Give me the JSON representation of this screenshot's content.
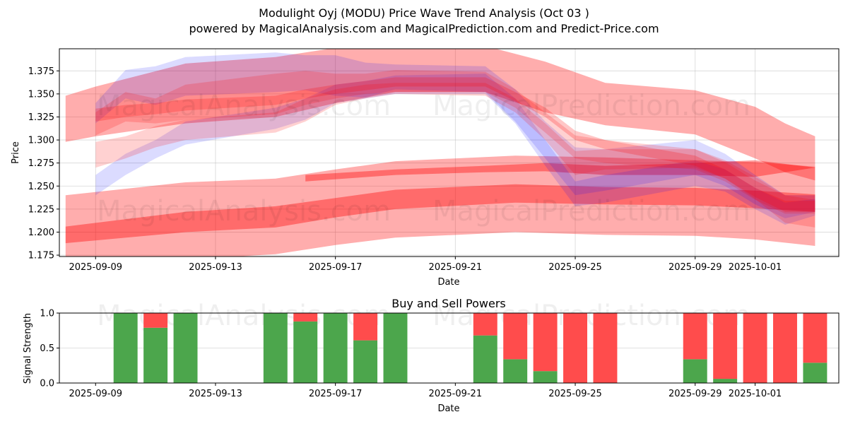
{
  "header": {
    "title": "Modulight Oyj (MODU) Price Wave Trend Analysis (Oct 03 )",
    "subtitle": "powered by MagicalAnalysis.com and MagicalPrediction.com and Predict-Price.com"
  },
  "watermarks": [
    "MagicalAnalysis.com",
    "MagicalPrediction.com"
  ],
  "chart_data": [
    {
      "type": "area",
      "title": "",
      "xlabel": "Date",
      "ylabel": "Price",
      "ylim": [
        1.1735,
        1.399
      ],
      "xlim": [
        "2025-09-07T19:00",
        "2025-10-03T19:00"
      ],
      "grid": true,
      "x_ticks": [
        "2025-09-09",
        "2025-09-13",
        "2025-09-17",
        "2025-09-21",
        "2025-09-25",
        "2025-09-29",
        "2025-10-01"
      ],
      "y_ticks": [
        "1.175",
        "1.200",
        "1.225",
        "1.250",
        "1.275",
        "1.300",
        "1.325",
        "1.350",
        "1.375"
      ],
      "colors": {
        "red": "#ff0000",
        "blue": "#0000ff"
      },
      "bands": [
        {
          "name": "long-wave-outer",
          "color": "red",
          "opacity": 0.32,
          "x": [
            "2025-09-08",
            "2025-09-12",
            "2025-09-15",
            "2025-09-17",
            "2025-09-19",
            "2025-09-23",
            "2025-09-26",
            "2025-09-29",
            "2025-10-01",
            "2025-10-03"
          ],
          "low": [
            1.165,
            1.17,
            1.176,
            1.186,
            1.194,
            1.2,
            1.197,
            1.196,
            1.192,
            1.185
          ],
          "high": [
            1.24,
            1.254,
            1.258,
            1.268,
            1.277,
            1.283,
            1.281,
            1.278,
            1.276,
            1.271
          ]
        },
        {
          "name": "long-wave-core",
          "color": "red",
          "opacity": 0.38,
          "x": [
            "2025-09-08",
            "2025-09-12",
            "2025-09-15",
            "2025-09-17",
            "2025-09-19",
            "2025-09-23",
            "2025-09-26",
            "2025-09-29",
            "2025-10-01",
            "2025-10-03"
          ],
          "low": [
            1.188,
            1.2,
            1.205,
            1.216,
            1.225,
            1.232,
            1.23,
            1.229,
            1.226,
            1.222
          ],
          "high": [
            1.206,
            1.222,
            1.228,
            1.237,
            1.246,
            1.252,
            1.249,
            1.248,
            1.245,
            1.241
          ]
        },
        {
          "name": "mid-wave-upper",
          "color": "red",
          "opacity": 0.32,
          "x": [
            "2025-09-08",
            "2025-09-09",
            "2025-09-12",
            "2025-09-15",
            "2025-09-17",
            "2025-09-19",
            "2025-09-22",
            "2025-09-24",
            "2025-09-26",
            "2025-09-29",
            "2025-10-01",
            "2025-10-02",
            "2025-10-03"
          ],
          "low": [
            1.298,
            1.304,
            1.318,
            1.325,
            1.34,
            1.352,
            1.352,
            1.33,
            1.316,
            1.306,
            1.28,
            1.265,
            1.256
          ],
          "high": [
            1.348,
            1.358,
            1.383,
            1.39,
            1.4,
            1.402,
            1.402,
            1.385,
            1.362,
            1.354,
            1.336,
            1.318,
            1.304
          ]
        },
        {
          "name": "mid-wave-lower",
          "color": "red",
          "opacity": 0.38,
          "x": [
            "2025-09-16",
            "2025-09-19",
            "2025-09-22",
            "2025-09-24",
            "2025-09-26",
            "2025-09-29",
            "2025-10-01",
            "2025-10-03"
          ],
          "low": [
            1.255,
            1.262,
            1.265,
            1.266,
            1.262,
            1.262,
            1.26,
            1.27
          ],
          "high": [
            1.262,
            1.268,
            1.272,
            1.275,
            1.272,
            1.275,
            1.278,
            1.27
          ]
        },
        {
          "name": "short-wave-1",
          "color": "blue",
          "opacity": 0.14,
          "x": [
            "2025-09-09",
            "2025-09-10",
            "2025-09-11",
            "2025-09-12",
            "2025-09-15",
            "2025-09-16",
            "2025-09-17",
            "2025-09-18",
            "2025-09-19",
            "2025-09-22",
            "2025-09-23",
            "2025-09-24",
            "2025-09-25",
            "2025-09-26",
            "2025-09-29",
            "2025-09-30",
            "2025-10-01",
            "2025-10-02",
            "2025-10-03"
          ],
          "low": [
            1.318,
            1.345,
            1.338,
            1.348,
            1.352,
            1.354,
            1.348,
            1.346,
            1.355,
            1.352,
            1.32,
            1.28,
            1.24,
            1.245,
            1.262,
            1.25,
            1.23,
            1.215,
            1.222
          ],
          "high": [
            1.34,
            1.376,
            1.38,
            1.39,
            1.395,
            1.392,
            1.392,
            1.384,
            1.382,
            1.38,
            1.355,
            1.32,
            1.292,
            1.29,
            1.3,
            1.285,
            1.262,
            1.24,
            1.24
          ]
        },
        {
          "name": "short-wave-2",
          "color": "blue",
          "opacity": 0.14,
          "x": [
            "2025-09-09",
            "2025-09-10",
            "2025-09-11",
            "2025-09-12",
            "2025-09-15",
            "2025-09-16",
            "2025-09-17",
            "2025-09-18",
            "2025-09-19",
            "2025-09-22",
            "2025-09-23",
            "2025-09-24",
            "2025-09-25",
            "2025-09-26",
            "2025-09-29",
            "2025-09-30",
            "2025-10-01",
            "2025-10-02",
            "2025-10-03"
          ],
          "low": [
            1.24,
            1.262,
            1.28,
            1.295,
            1.312,
            1.322,
            1.34,
            1.345,
            1.35,
            1.35,
            1.318,
            1.272,
            1.228,
            1.232,
            1.25,
            1.244,
            1.225,
            1.208,
            1.218
          ],
          "high": [
            1.262,
            1.285,
            1.3,
            1.32,
            1.335,
            1.345,
            1.36,
            1.364,
            1.37,
            1.372,
            1.345,
            1.3,
            1.255,
            1.262,
            1.278,
            1.268,
            1.248,
            1.232,
            1.236
          ]
        },
        {
          "name": "short-wave-3",
          "color": "red",
          "opacity": 0.18,
          "x": [
            "2025-09-09",
            "2025-09-10",
            "2025-09-11",
            "2025-09-12",
            "2025-09-15",
            "2025-09-16",
            "2025-09-17",
            "2025-09-18",
            "2025-09-19",
            "2025-09-22",
            "2025-09-23",
            "2025-09-24",
            "2025-09-25",
            "2025-09-26",
            "2025-09-29",
            "2025-09-30",
            "2025-10-01",
            "2025-10-02",
            "2025-10-03"
          ],
          "low": [
            1.305,
            1.32,
            1.318,
            1.322,
            1.328,
            1.338,
            1.345,
            1.35,
            1.352,
            1.352,
            1.335,
            1.308,
            1.28,
            1.275,
            1.268,
            1.255,
            1.235,
            1.22,
            1.22
          ],
          "high": [
            1.33,
            1.352,
            1.345,
            1.36,
            1.372,
            1.375,
            1.372,
            1.372,
            1.376,
            1.374,
            1.355,
            1.33,
            1.305,
            1.3,
            1.29,
            1.276,
            1.256,
            1.24,
            1.24
          ]
        },
        {
          "name": "short-wave-4",
          "color": "red",
          "opacity": 0.18,
          "x": [
            "2025-09-09",
            "2025-09-10",
            "2025-09-11",
            "2025-09-12",
            "2025-09-15",
            "2025-09-16",
            "2025-09-17",
            "2025-09-18",
            "2025-09-19",
            "2025-09-22",
            "2025-09-23",
            "2025-09-24",
            "2025-09-25",
            "2025-09-26",
            "2025-09-29",
            "2025-09-30",
            "2025-10-01",
            "2025-10-02",
            "2025-10-03"
          ],
          "low": [
            1.27,
            1.28,
            1.292,
            1.3,
            1.308,
            1.32,
            1.338,
            1.345,
            1.35,
            1.348,
            1.33,
            1.3,
            1.262,
            1.268,
            1.27,
            1.258,
            1.236,
            1.21,
            1.205
          ],
          "high": [
            1.298,
            1.304,
            1.315,
            1.322,
            1.33,
            1.345,
            1.355,
            1.36,
            1.362,
            1.362,
            1.345,
            1.318,
            1.288,
            1.29,
            1.29,
            1.278,
            1.26,
            1.24,
            1.235
          ]
        },
        {
          "name": "short-wave-5",
          "color": "red",
          "opacity": 0.22,
          "x": [
            "2025-09-09",
            "2025-09-10",
            "2025-09-11",
            "2025-09-12",
            "2025-09-15",
            "2025-09-16",
            "2025-09-17",
            "2025-09-18",
            "2025-09-19",
            "2025-09-22",
            "2025-09-23",
            "2025-09-24",
            "2025-09-25",
            "2025-09-26",
            "2025-09-29",
            "2025-09-30",
            "2025-10-01",
            "2025-10-02",
            "2025-10-03"
          ],
          "low": [
            1.32,
            1.325,
            1.328,
            1.332,
            1.338,
            1.345,
            1.35,
            1.354,
            1.358,
            1.358,
            1.342,
            1.325,
            1.3,
            1.29,
            1.272,
            1.258,
            1.238,
            1.222,
            1.222
          ],
          "high": [
            1.334,
            1.338,
            1.34,
            1.344,
            1.348,
            1.355,
            1.36,
            1.364,
            1.368,
            1.368,
            1.352,
            1.335,
            1.31,
            1.3,
            1.283,
            1.268,
            1.248,
            1.234,
            1.234
          ]
        }
      ]
    },
    {
      "type": "bar",
      "title": "Buy and Sell Powers",
      "xlabel": "Date",
      "ylabel": "Signal Strength",
      "ylim": [
        0,
        1
      ],
      "xlim": [
        "2025-09-07T19:00",
        "2025-10-03T19:00"
      ],
      "grid": true,
      "x_ticks": [
        "2025-09-09",
        "2025-09-13",
        "2025-09-17",
        "2025-09-21",
        "2025-09-25",
        "2025-09-29",
        "2025-10-01"
      ],
      "y_ticks": [
        "0.0",
        "0.5",
        "1.0"
      ],
      "colors": {
        "buy": "#4ca64c",
        "sell": "#ff4c4c"
      },
      "categories": [
        "2025-09-10",
        "2025-09-11",
        "2025-09-12",
        "2025-09-15",
        "2025-09-16",
        "2025-09-17",
        "2025-09-18",
        "2025-09-19",
        "2025-09-22",
        "2025-09-23",
        "2025-09-24",
        "2025-09-25",
        "2025-09-26",
        "2025-09-29",
        "2025-09-30",
        "2025-10-01",
        "2025-10-02",
        "2025-10-03"
      ],
      "series": [
        {
          "name": "Buy",
          "values": [
            1.0,
            0.79,
            1.0,
            1.0,
            0.88,
            1.0,
            0.61,
            1.0,
            0.68,
            0.34,
            0.17,
            0.0,
            0.0,
            0.34,
            0.06,
            0.0,
            0.0,
            0.29
          ]
        },
        {
          "name": "Sell",
          "values": [
            0.0,
            0.21,
            0.0,
            0.0,
            0.12,
            0.0,
            0.39,
            0.0,
            0.32,
            0.66,
            0.83,
            1.0,
            1.0,
            0.66,
            0.94,
            1.0,
            1.0,
            0.71
          ]
        }
      ]
    }
  ]
}
